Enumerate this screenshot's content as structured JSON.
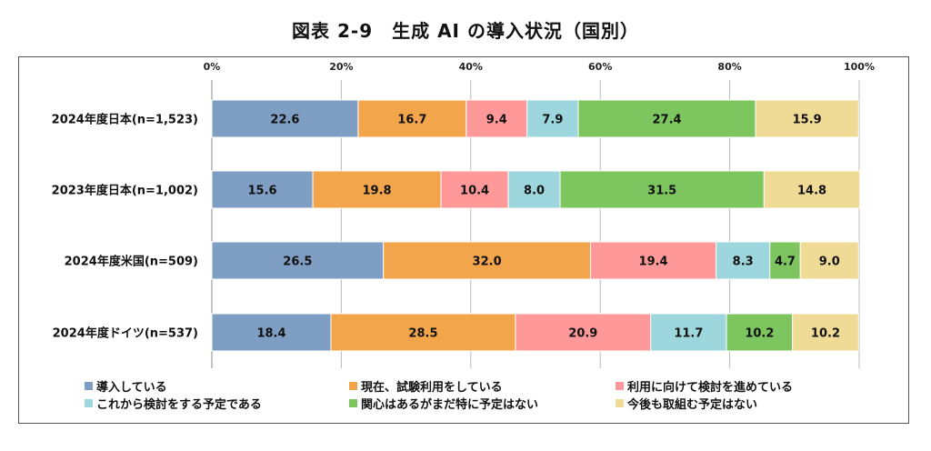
{
  "chart_data": {
    "type": "bar",
    "stacked": true,
    "orientation": "horizontal",
    "title": "図表 2-9　生成 AI の導入状況（国別）",
    "categories": [
      "2024年度日本(n=1,523)",
      "2023年度日本(n=1,002)",
      "2024年度米国(n=509)",
      "2024年度ドイツ(n=537)"
    ],
    "xlim": [
      0,
      100
    ],
    "xticks": [
      "0%",
      "20%",
      "40%",
      "60%",
      "80%",
      "100%"
    ],
    "grid": true,
    "legend_position": "bottom",
    "series": [
      {
        "name": "導入している",
        "color": "#7f9ec4",
        "values": [
          22.6,
          15.6,
          26.5,
          18.4
        ]
      },
      {
        "name": "現在、試験利用をしている",
        "color": "#f2a54a",
        "values": [
          16.7,
          19.8,
          32.0,
          28.5
        ]
      },
      {
        "name": "利用に向けて検討を進めている",
        "color": "#ff9999",
        "values": [
          9.4,
          10.4,
          19.4,
          20.9
        ]
      },
      {
        "name": "これから検討をする予定である",
        "color": "#9dd6dc",
        "values": [
          7.9,
          8.0,
          8.3,
          11.7
        ]
      },
      {
        "name": "関心はあるがまだ特に予定はない",
        "color": "#7dc55e",
        "values": [
          27.4,
          31.5,
          4.7,
          10.2
        ]
      },
      {
        "name": "今後も取組む予定はない",
        "color": "#f0db96",
        "values": [
          15.9,
          14.8,
          9.0,
          10.2
        ]
      }
    ]
  }
}
